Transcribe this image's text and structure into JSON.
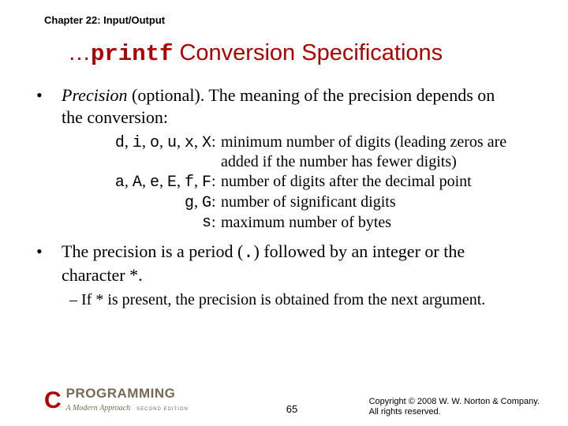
{
  "chapter": "Chapter 22: Input/Output",
  "title": {
    "ellipsis": "…",
    "code": "printf",
    "rest": " Conversion Specifications"
  },
  "bullet1": {
    "dot": "•",
    "em": "Precision",
    "rest": " (optional). The meaning of the precision depends on the conversion:"
  },
  "specs": [
    {
      "codes": [
        "d",
        "i",
        "o",
        "u",
        "x",
        "X"
      ],
      "desc": "minimum number of digits (leading zeros are added if the number has fewer digits)"
    },
    {
      "codes": [
        "a",
        "A",
        "e",
        "E",
        "f",
        "F"
      ],
      "desc": "number of digits after the decimal point"
    },
    {
      "codes": [
        "g",
        "G"
      ],
      "desc": "number of significant digits"
    },
    {
      "codes": [
        "s"
      ],
      "desc": "maximum number of bytes"
    }
  ],
  "bullet2": {
    "dot": "•",
    "pre": "The precision is a period (",
    "code": ".",
    "post": ") followed by an integer or the character *."
  },
  "sub": {
    "dash": "–",
    "text": "If * is present, the precision is obtained from the next argument."
  },
  "footer": {
    "page": "65",
    "copyright1": "Copyright © 2008 W. W. Norton & Company.",
    "copyright2": "All rights reserved.",
    "logo_c": "C",
    "logo_main": "PROGRAMMING",
    "logo_sub": "A Modern Approach",
    "logo_ed": "SECOND EDITION"
  },
  "colors": {
    "title": "#b00000",
    "text": "#000000",
    "logo_brown": "#776a55"
  }
}
